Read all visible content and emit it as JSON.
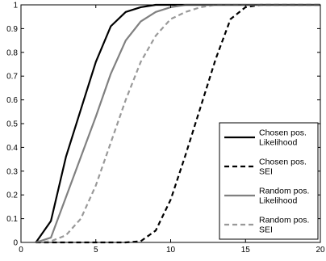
{
  "chart_data": {
    "type": "line",
    "title": "",
    "xlabel": "",
    "ylabel": "",
    "xlim": [
      0,
      20
    ],
    "ylim": [
      0,
      1
    ],
    "x_ticks": [
      "0",
      "5",
      "10",
      "15",
      "20"
    ],
    "y_ticks": [
      "0",
      "0.1",
      "0.2",
      "0.3",
      "0.4",
      "0.5",
      "0.6",
      "0.7",
      "0.8",
      "0.9",
      "1"
    ],
    "grid": false,
    "legend_position": "bottom-right",
    "series": [
      {
        "name_lines": [
          "Chosen pos.",
          "Likelihood"
        ],
        "color": "#000000",
        "dash": "solid",
        "x": [
          1,
          2,
          3,
          4,
          5,
          6,
          7,
          8,
          9,
          10,
          20
        ],
        "y": [
          0,
          0.09,
          0.36,
          0.56,
          0.76,
          0.91,
          0.97,
          0.99,
          1.0,
          1.0,
          1.0
        ]
      },
      {
        "name_lines": [
          "Chosen pos.",
          "SEI"
        ],
        "color": "#000000",
        "dash": "dashed",
        "x": [
          1,
          7,
          8,
          9,
          10,
          11,
          12,
          13,
          14,
          15,
          16,
          20
        ],
        "y": [
          0,
          0,
          0.005,
          0.05,
          0.18,
          0.37,
          0.57,
          0.77,
          0.94,
          0.99,
          1.0,
          1.0
        ]
      },
      {
        "name_lines": [
          "Random pos.",
          "Likelihood"
        ],
        "color": "#808080",
        "dash": "solid",
        "x": [
          1,
          2,
          3,
          4,
          5,
          6,
          7,
          8,
          9,
          10,
          11,
          12,
          20
        ],
        "y": [
          0,
          0.02,
          0.19,
          0.36,
          0.53,
          0.71,
          0.85,
          0.93,
          0.97,
          0.99,
          1.0,
          1.0,
          1.0
        ]
      },
      {
        "name_lines": [
          "Random pos.",
          "SEI"
        ],
        "color": "#999999",
        "dash": "dashed",
        "x": [
          1,
          2,
          3,
          4,
          5,
          6,
          7,
          8,
          9,
          10,
          11,
          12,
          13,
          14,
          20
        ],
        "y": [
          0,
          0.005,
          0.03,
          0.1,
          0.24,
          0.42,
          0.6,
          0.76,
          0.87,
          0.94,
          0.97,
          0.99,
          1.0,
          1.0,
          1.0
        ]
      }
    ]
  }
}
